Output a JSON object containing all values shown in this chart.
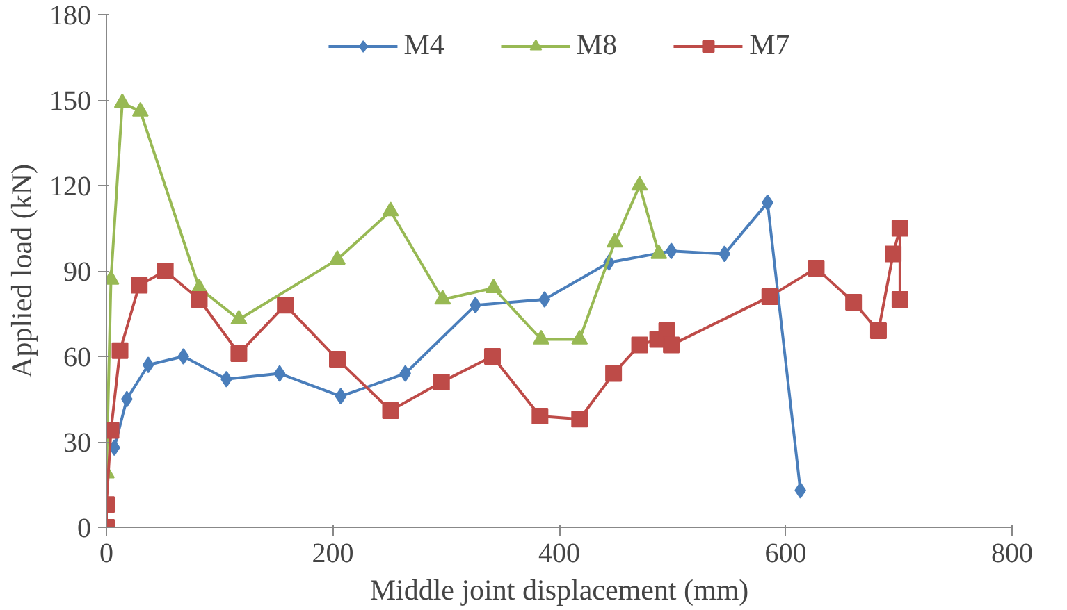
{
  "chart_data": {
    "type": "line",
    "xlabel": "Middle joint displacement (mm)",
    "ylabel": "Applied load (kN)",
    "xlim": [
      0,
      800
    ],
    "xticks": [
      0,
      200,
      400,
      600,
      800
    ],
    "ylim": [
      0,
      180
    ],
    "yticks": [
      0,
      30,
      60,
      90,
      120,
      150,
      180
    ],
    "grid": false,
    "legend": "top",
    "series": [
      {
        "name": "M4",
        "color": "#4a7ebb",
        "marker": "diamond",
        "x": [
          7,
          18,
          37,
          68,
          106,
          153,
          207,
          264,
          326,
          387,
          444,
          499,
          546,
          584,
          613
        ],
        "values": [
          28,
          45,
          57,
          60,
          52,
          54,
          46,
          54,
          78,
          80,
          93,
          97,
          96,
          114,
          13
        ]
      },
      {
        "name": "M8",
        "color": "#98b954",
        "marker": "triangle",
        "x": [
          0,
          4,
          14,
          30,
          82,
          117,
          204,
          251,
          297,
          342,
          384,
          418,
          449,
          471,
          488
        ],
        "values": [
          19,
          87,
          149,
          146,
          84,
          73,
          94,
          111,
          80,
          84,
          66,
          66,
          100,
          120,
          96
        ]
      },
      {
        "name": "M7",
        "color": "#be4b48",
        "marker": "square",
        "x": [
          0,
          0,
          4,
          12,
          29,
          52,
          82,
          117,
          158,
          204,
          251,
          296,
          341,
          383,
          418,
          448,
          471,
          487,
          495,
          499,
          586,
          627,
          660,
          682,
          695,
          701,
          701
        ],
        "values": [
          0,
          8,
          34,
          62,
          85,
          90,
          80,
          61,
          78,
          59,
          41,
          51,
          60,
          39,
          38,
          54,
          64,
          66,
          69,
          64,
          81,
          91,
          79,
          69,
          96,
          105,
          80
        ]
      }
    ]
  }
}
